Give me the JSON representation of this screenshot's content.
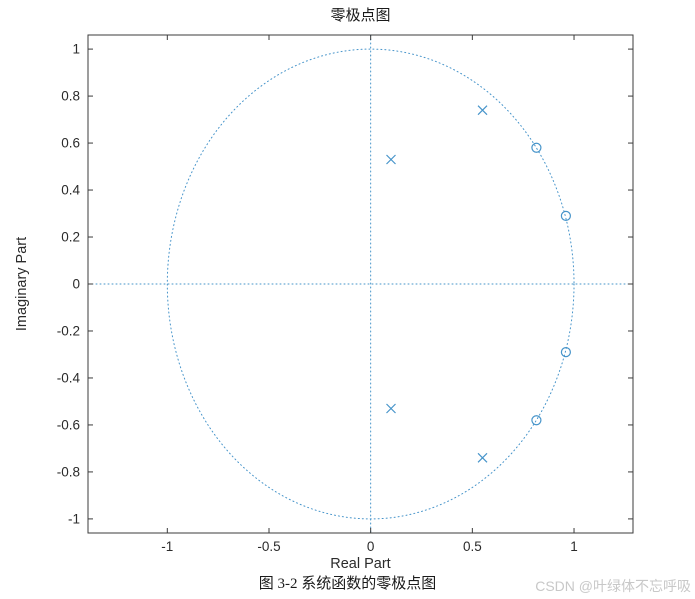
{
  "caption": "图 3-2 系统函数的零极点图",
  "watermark": "CSDN @叶绿体不忘呼吸",
  "chart_data": {
    "type": "scatter",
    "subtype": "pole-zero",
    "title": "零极点图",
    "xlabel": "Real Part",
    "ylabel": "Imaginary Part",
    "xlim": [
      -1.39,
      1.29
    ],
    "ylim": [
      -1.06,
      1.06
    ],
    "x_ticks": [
      -1,
      -0.5,
      0,
      0.5,
      1
    ],
    "y_ticks": [
      -1,
      -0.8,
      -0.6,
      -0.4,
      -0.2,
      0,
      0.2,
      0.4,
      0.6,
      0.8,
      1
    ],
    "unit_circle": true,
    "reference_lines": {
      "horizontal_at": 0,
      "vertical_at": 0
    },
    "grid": false,
    "series": [
      {
        "name": "poles",
        "marker": "x",
        "points": [
          [
            0.55,
            0.74
          ],
          [
            0.1,
            0.53
          ],
          [
            0.1,
            -0.53
          ],
          [
            0.55,
            -0.74
          ]
        ]
      },
      {
        "name": "zeros",
        "marker": "o",
        "points": [
          [
            0.815,
            0.58
          ],
          [
            0.96,
            0.29
          ],
          [
            0.96,
            -0.29
          ],
          [
            0.815,
            -0.58
          ]
        ]
      }
    ],
    "colors": {
      "accent": "#4694ca",
      "axis": "#3b3b3b",
      "text": "#2b2b2b",
      "title": "#1a1a1a"
    }
  }
}
